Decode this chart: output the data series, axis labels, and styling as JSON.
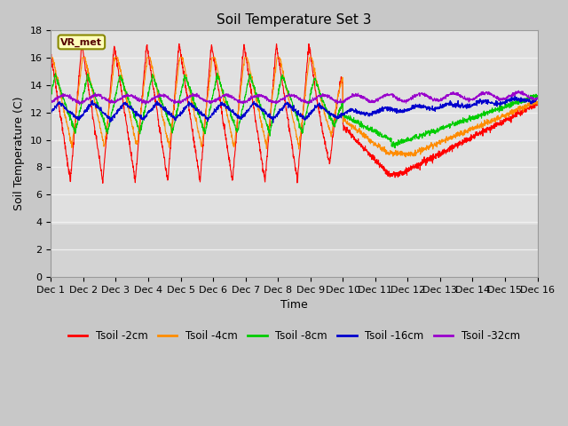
{
  "title": "Soil Temperature Set 3",
  "xlabel": "Time",
  "ylabel": "Soil Temperature (C)",
  "ylim": [
    0,
    18
  ],
  "yticks": [
    0,
    2,
    4,
    6,
    8,
    10,
    12,
    14,
    16,
    18
  ],
  "xtick_labels": [
    "Dec 1",
    "Dec 2",
    "Dec 3",
    "Dec 4",
    "Dec 5",
    "Dec 6",
    "Dec 7",
    "Dec 8",
    "Dec 9",
    "Dec 10",
    "Dec 11",
    "Dec 12",
    "Dec 13",
    "Dec 14",
    "Dec 15",
    "Dec 16"
  ],
  "n_points": 2160,
  "legend_labels": [
    "Tsoil -2cm",
    "Tsoil -4cm",
    "Tsoil -8cm",
    "Tsoil -16cm",
    "Tsoil -32cm"
  ],
  "line_colors": [
    "#ff0000",
    "#ff8c00",
    "#00cc00",
    "#0000cd",
    "#9900cc"
  ],
  "legend_box_color": "#ffffbb",
  "legend_box_edge": "#888800",
  "station_label": "VR_met",
  "bg_color": "#c8c8c8",
  "plot_bg_color_upper": "#e0e0e0",
  "plot_bg_color_lower": "#d0d0d0",
  "grid_color": "#f0f0f0",
  "title_fontsize": 11,
  "axis_fontsize": 9,
  "tick_fontsize": 8,
  "legend_fontsize": 8.5
}
